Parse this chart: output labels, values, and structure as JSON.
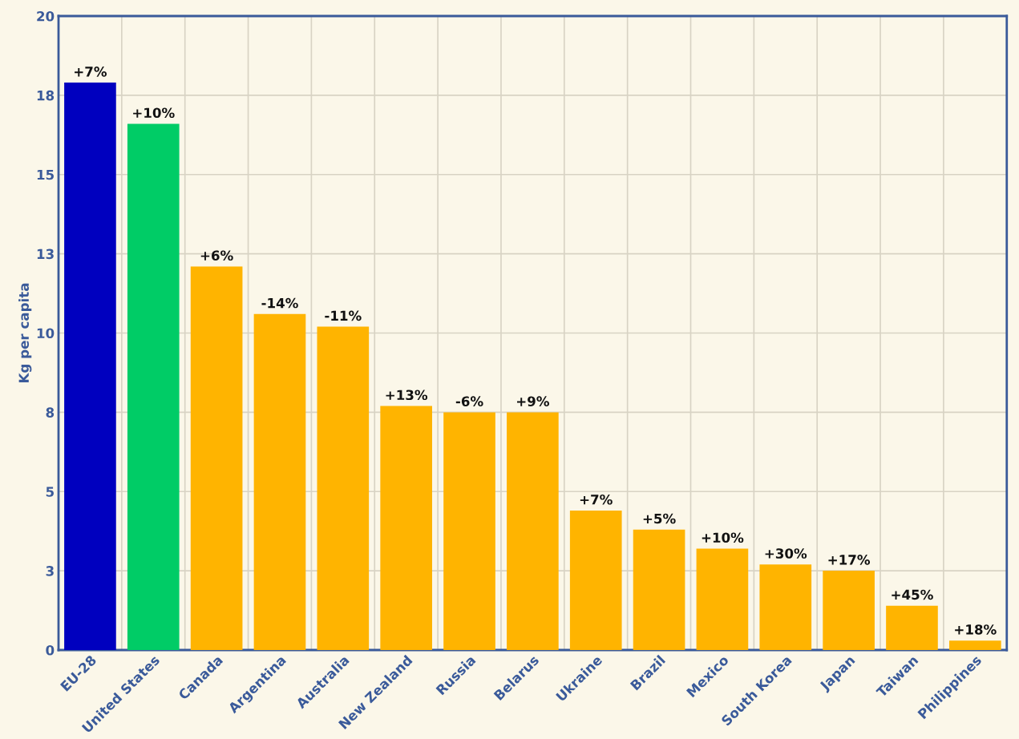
{
  "chart_data": {
    "type": "bar",
    "ylabel": "Kg per capita",
    "categories": [
      "EU-28",
      "United States",
      "Canada",
      "Argentina",
      "Australia",
      "New Zealand",
      "Russia",
      "Belarus",
      "Ukraine",
      "Brazil",
      "Mexico",
      "South Korea",
      "Japan",
      "Taiwan",
      "Philippines"
    ],
    "values": [
      17.9,
      16.6,
      12.1,
      10.6,
      10.2,
      7.7,
      7.5,
      7.5,
      4.4,
      3.8,
      3.2,
      2.7,
      2.5,
      1.4,
      0.3
    ],
    "colors": [
      "#0000bf",
      "#00cc66",
      "#ffb400",
      "#ffb400",
      "#ffb400",
      "#ffb400",
      "#ffb400",
      "#ffb400",
      "#ffb400",
      "#ffb400",
      "#ffb400",
      "#ffb400",
      "#ffb400",
      "#ffb400",
      "#ffb400"
    ],
    "annotations": [
      {
        "text": "+7%",
        "x": "EU-28",
        "y": 17.9
      },
      {
        "text": "+10%",
        "x": "United States",
        "y": 16.6
      },
      {
        "text": "+6%",
        "x": "Canada",
        "y": 12.1
      },
      {
        "text": "-14%",
        "x": "Argentina",
        "y": 10.6
      },
      {
        "text": "-11%",
        "x": "Australia",
        "y": 10.2
      },
      {
        "text": "+13%",
        "x": "New Zealand",
        "y": 7.7
      },
      {
        "text": "-6%",
        "x": "Russia",
        "y": 7.5
      },
      {
        "text": "+9%",
        "x": "Belarus",
        "y": 7.5
      },
      {
        "text": "+7%",
        "x": "Ukraine",
        "y": 4.4
      },
      {
        "text": "+5%",
        "x": "Brazil",
        "y": 3.8
      },
      {
        "text": "+10%",
        "x": "Mexico",
        "y": 3.2
      },
      {
        "text": "+30%",
        "x": "South Korea",
        "y": 2.7
      },
      {
        "text": "+17%",
        "x": "Japan",
        "y": 2.5
      },
      {
        "text": "+45%",
        "x": "Taiwan",
        "y": 1.4
      },
      {
        "text": "+18%",
        "x": "Philippines",
        "y": 0.3
      }
    ],
    "ylim": [
      0,
      20
    ],
    "yticks": [
      0,
      {
        "value": 2.5,
        "label": "3"
      },
      5,
      {
        "value": 7.5,
        "label": "8"
      },
      10,
      {
        "value": 12.5,
        "label": "13"
      },
      15,
      {
        "value": 17.5,
        "label": "18"
      },
      20
    ],
    "grid": true
  }
}
